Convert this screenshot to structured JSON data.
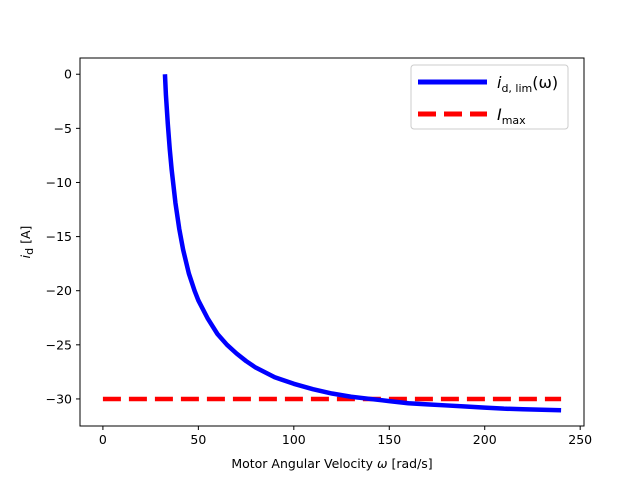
{
  "chart_data": {
    "type": "line",
    "xlabel": {
      "text": "Motor Angular Velocity ",
      "symbol": "ω",
      "unit": " [rad/s]"
    },
    "ylabel": {
      "symbol": "i",
      "subscript": "d",
      "unit": " [A]"
    },
    "xlim": [
      -12,
      252
    ],
    "ylim": [
      -32.5,
      1.5
    ],
    "x_ticks": [
      0,
      50,
      100,
      150,
      200,
      250
    ],
    "y_ticks": [
      0,
      -5,
      -10,
      -15,
      -20,
      -25,
      -30
    ],
    "x_tick_labels": [
      "0",
      "50",
      "100",
      "150",
      "200",
      "250"
    ],
    "y_tick_labels": [
      "0",
      "−5",
      "−10",
      "−15",
      "−20",
      "−25",
      "−30"
    ],
    "grid": false,
    "legend_position": "top-right",
    "series": [
      {
        "name": "i_d,lim(ω)",
        "legend": {
          "symbol": "i",
          "subscript": "d, lim",
          "suffix": "(ω)"
        },
        "color": "#0000ff",
        "style": "solid",
        "x": [
          32.5,
          33,
          34,
          35,
          36,
          38,
          40,
          42,
          45,
          48,
          50,
          55,
          60,
          65,
          70,
          75,
          80,
          90,
          100,
          110,
          120,
          130,
          140,
          150,
          160,
          170,
          180,
          190,
          200,
          210,
          220,
          230,
          240
        ],
        "y": [
          0,
          -1.9,
          -4.6,
          -6.9,
          -8.8,
          -11.9,
          -14.3,
          -16.2,
          -18.4,
          -20.0,
          -20.9,
          -22.6,
          -24.0,
          -25.0,
          -25.8,
          -26.5,
          -27.1,
          -28.0,
          -28.6,
          -29.1,
          -29.5,
          -29.8,
          -30.0,
          -30.2,
          -30.4,
          -30.5,
          -30.6,
          -30.7,
          -30.8,
          -30.9,
          -30.95,
          -31.0,
          -31.05
        ]
      },
      {
        "name": "I_max",
        "legend": {
          "symbol": "I",
          "subscript": "max",
          "suffix": ""
        },
        "color": "#ff0000",
        "style": "dashed",
        "x": [
          0,
          240
        ],
        "y": [
          -30,
          -30
        ]
      }
    ]
  }
}
